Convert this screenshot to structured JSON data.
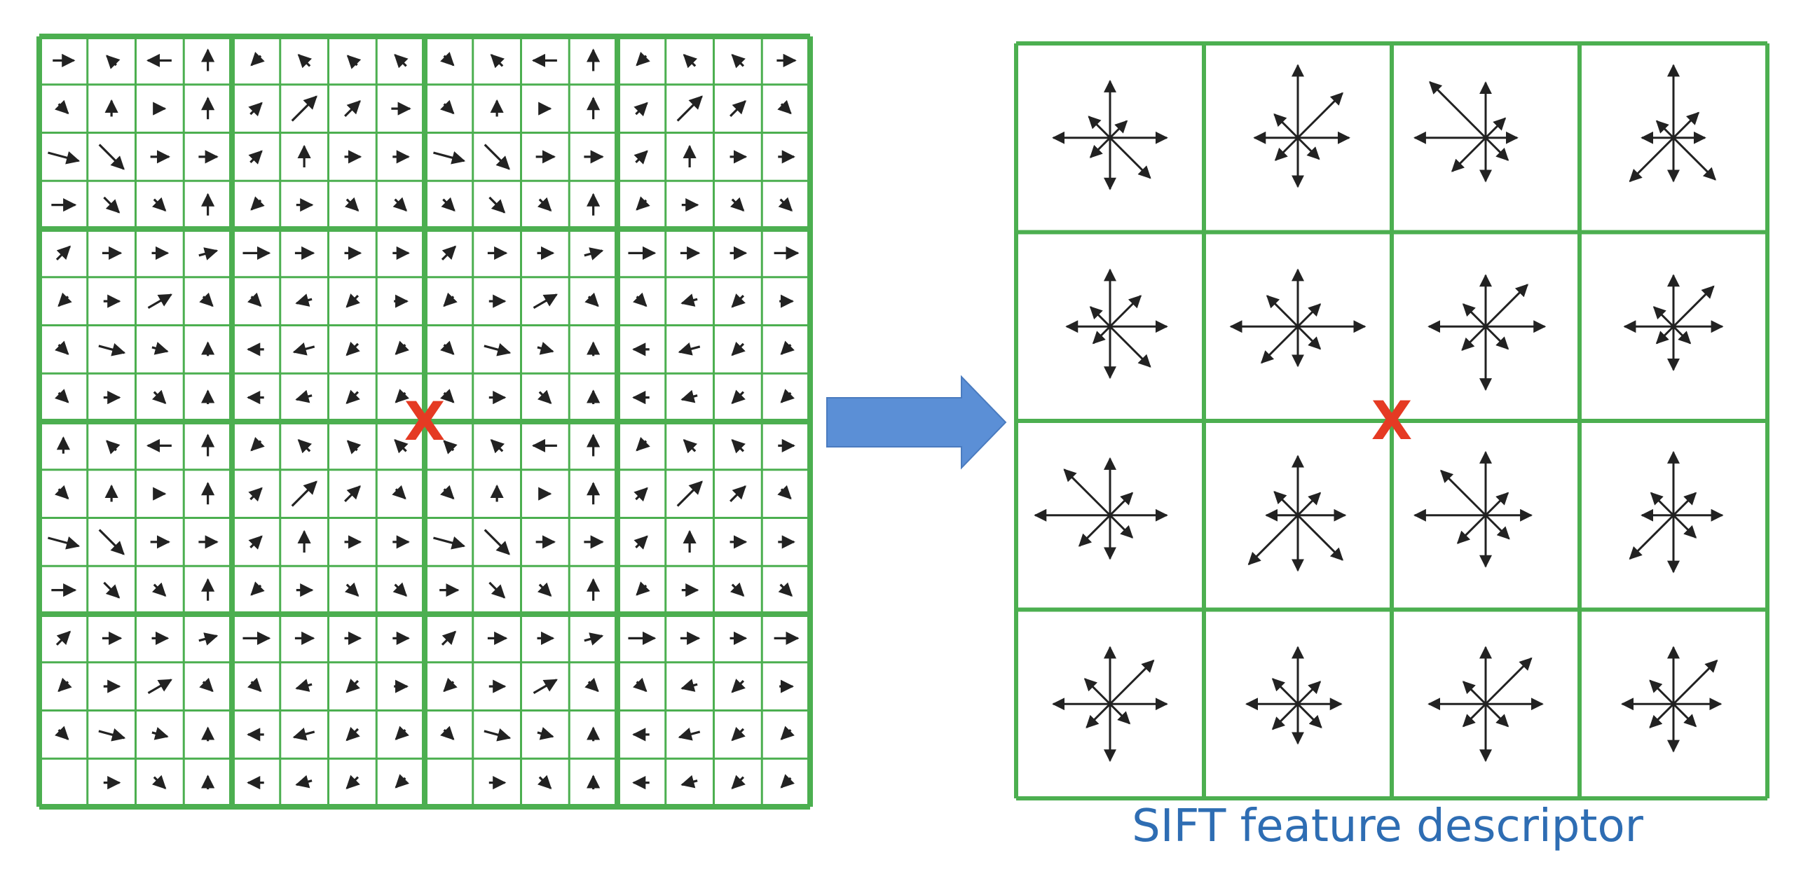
{
  "caption": "SIFT feature descriptor",
  "keypoint_mark": "X",
  "colors": {
    "grid": "#4caf50",
    "arrow": "#222222",
    "transition_arrow": "#5b8fd6",
    "transition_arrow_stroke": "#4a7bbf",
    "keypoint": "#e53a23",
    "caption": "#2e6db3"
  },
  "gradient_field": {
    "rows": 16,
    "cols": 16,
    "block_size": 4,
    "arrows": [
      [
        [
          0,
          0.8
        ],
        [
          135,
          0.5
        ],
        [
          180,
          0.9
        ],
        [
          90,
          0.8
        ],
        [
          225,
          0.5
        ],
        [
          135,
          0.6
        ],
        [
          135,
          0.5
        ],
        [
          135,
          0.6
        ],
        [
          315,
          0.5
        ],
        [
          135,
          0.6
        ],
        [
          180,
          0.9
        ],
        [
          90,
          0.8
        ],
        [
          225,
          0.5
        ],
        [
          135,
          0.6
        ],
        [
          135,
          0.6
        ],
        [
          0,
          0.7
        ]
      ],
      [
        [
          315,
          0.5
        ],
        [
          90,
          0.6
        ],
        [
          0,
          0.4
        ],
        [
          90,
          0.8
        ],
        [
          45,
          0.6
        ],
        [
          45,
          1.3
        ],
        [
          45,
          0.8
        ],
        [
          0,
          0.7
        ],
        [
          315,
          0.5
        ],
        [
          90,
          0.6
        ],
        [
          0,
          0.4
        ],
        [
          90,
          0.8
        ],
        [
          45,
          0.6
        ],
        [
          45,
          1.3
        ],
        [
          45,
          0.8
        ],
        [
          315,
          0.5
        ]
      ],
      [
        [
          345,
          1.2
        ],
        [
          315,
          1.3
        ],
        [
          0,
          0.7
        ],
        [
          0,
          0.7
        ],
        [
          45,
          0.6
        ],
        [
          90,
          0.8
        ],
        [
          0,
          0.6
        ],
        [
          0,
          0.6
        ],
        [
          345,
          1.2
        ],
        [
          315,
          1.3
        ],
        [
          0,
          0.7
        ],
        [
          0,
          0.7
        ],
        [
          45,
          0.6
        ],
        [
          90,
          0.8
        ],
        [
          0,
          0.6
        ],
        [
          0,
          0.6
        ]
      ],
      [
        [
          0,
          0.9
        ],
        [
          315,
          0.8
        ],
        [
          315,
          0.6
        ],
        [
          90,
          0.8
        ],
        [
          225,
          0.5
        ],
        [
          0,
          0.6
        ],
        [
          315,
          0.6
        ],
        [
          315,
          0.6
        ],
        [
          315,
          0.6
        ],
        [
          315,
          0.8
        ],
        [
          315,
          0.6
        ],
        [
          90,
          0.8
        ],
        [
          225,
          0.5
        ],
        [
          0,
          0.6
        ],
        [
          315,
          0.6
        ],
        [
          315,
          0.6
        ]
      ],
      [
        [
          45,
          0.7
        ],
        [
          0,
          0.7
        ],
        [
          0,
          0.6
        ],
        [
          15,
          0.7
        ],
        [
          0,
          1.0
        ],
        [
          0,
          0.7
        ],
        [
          0,
          0.6
        ],
        [
          0,
          0.6
        ],
        [
          45,
          0.7
        ],
        [
          0,
          0.7
        ],
        [
          0,
          0.6
        ],
        [
          15,
          0.7
        ],
        [
          0,
          1.0
        ],
        [
          0,
          0.7
        ],
        [
          0,
          0.6
        ],
        [
          0,
          0.9
        ]
      ],
      [
        [
          225,
          0.5
        ],
        [
          0,
          0.6
        ],
        [
          30,
          1.0
        ],
        [
          315,
          0.5
        ],
        [
          315,
          0.5
        ],
        [
          195,
          0.6
        ],
        [
          225,
          0.6
        ],
        [
          0,
          0.5
        ],
        [
          225,
          0.5
        ],
        [
          0,
          0.6
        ],
        [
          30,
          1.0
        ],
        [
          315,
          0.5
        ],
        [
          315,
          0.5
        ],
        [
          195,
          0.6
        ],
        [
          225,
          0.6
        ],
        [
          0,
          0.5
        ]
      ],
      [
        [
          315,
          0.5
        ],
        [
          345,
          1.0
        ],
        [
          345,
          0.6
        ],
        [
          90,
          0.5
        ],
        [
          180,
          0.6
        ],
        [
          195,
          0.8
        ],
        [
          225,
          0.6
        ],
        [
          225,
          0.5
        ],
        [
          315,
          0.5
        ],
        [
          345,
          1.0
        ],
        [
          345,
          0.6
        ],
        [
          90,
          0.5
        ],
        [
          180,
          0.6
        ],
        [
          195,
          0.8
        ],
        [
          225,
          0.6
        ],
        [
          225,
          0.5
        ]
      ],
      [
        [
          315,
          0.5
        ],
        [
          0,
          0.6
        ],
        [
          315,
          0.6
        ],
        [
          90,
          0.5
        ],
        [
          180,
          0.6
        ],
        [
          195,
          0.6
        ],
        [
          225,
          0.6
        ],
        [
          225,
          0.5
        ],
        [
          315,
          0.5
        ],
        [
          0,
          0.6
        ],
        [
          315,
          0.6
        ],
        [
          90,
          0.5
        ],
        [
          180,
          0.6
        ],
        [
          195,
          0.6
        ],
        [
          225,
          0.6
        ],
        [
          225,
          0.5
        ]
      ],
      [
        [
          90,
          0.6
        ],
        [
          135,
          0.5
        ],
        [
          180,
          0.9
        ],
        [
          90,
          0.8
        ],
        [
          225,
          0.5
        ],
        [
          135,
          0.6
        ],
        [
          135,
          0.5
        ],
        [
          135,
          0.6
        ],
        [
          135,
          0.5
        ],
        [
          135,
          0.6
        ],
        [
          180,
          0.9
        ],
        [
          90,
          0.8
        ],
        [
          225,
          0.5
        ],
        [
          135,
          0.6
        ],
        [
          135,
          0.6
        ],
        [
          0,
          0.6
        ]
      ],
      [
        [
          315,
          0.5
        ],
        [
          90,
          0.6
        ],
        [
          0,
          0.4
        ],
        [
          90,
          0.8
        ],
        [
          45,
          0.6
        ],
        [
          45,
          1.3
        ],
        [
          45,
          0.8
        ],
        [
          315,
          0.5
        ],
        [
          315,
          0.5
        ],
        [
          90,
          0.6
        ],
        [
          0,
          0.4
        ],
        [
          90,
          0.8
        ],
        [
          45,
          0.6
        ],
        [
          45,
          1.3
        ],
        [
          45,
          0.8
        ],
        [
          315,
          0.5
        ]
      ],
      [
        [
          345,
          1.2
        ],
        [
          315,
          1.3
        ],
        [
          0,
          0.7
        ],
        [
          0,
          0.7
        ],
        [
          45,
          0.6
        ],
        [
          90,
          0.8
        ],
        [
          0,
          0.6
        ],
        [
          0,
          0.6
        ],
        [
          345,
          1.2
        ],
        [
          315,
          1.3
        ],
        [
          0,
          0.7
        ],
        [
          0,
          0.7
        ],
        [
          45,
          0.6
        ],
        [
          90,
          0.8
        ],
        [
          0,
          0.6
        ],
        [
          0,
          0.6
        ]
      ],
      [
        [
          0,
          0.9
        ],
        [
          315,
          0.8
        ],
        [
          315,
          0.6
        ],
        [
          90,
          0.8
        ],
        [
          225,
          0.5
        ],
        [
          0,
          0.6
        ],
        [
          315,
          0.6
        ],
        [
          315,
          0.6
        ],
        [
          0,
          0.7
        ],
        [
          315,
          0.8
        ],
        [
          315,
          0.6
        ],
        [
          90,
          0.8
        ],
        [
          225,
          0.5
        ],
        [
          0,
          0.6
        ],
        [
          315,
          0.6
        ],
        [
          315,
          0.6
        ]
      ],
      [
        [
          45,
          0.7
        ],
        [
          0,
          0.7
        ],
        [
          0,
          0.6
        ],
        [
          15,
          0.7
        ],
        [
          0,
          1.0
        ],
        [
          0,
          0.7
        ],
        [
          0,
          0.6
        ],
        [
          0,
          0.6
        ],
        [
          45,
          0.7
        ],
        [
          0,
          0.7
        ],
        [
          0,
          0.6
        ],
        [
          15,
          0.7
        ],
        [
          0,
          1.0
        ],
        [
          0,
          0.7
        ],
        [
          0,
          0.6
        ],
        [
          0,
          0.9
        ]
      ],
      [
        [
          225,
          0.5
        ],
        [
          0,
          0.6
        ],
        [
          30,
          1.0
        ],
        [
          315,
          0.5
        ],
        [
          315,
          0.5
        ],
        [
          195,
          0.6
        ],
        [
          225,
          0.6
        ],
        [
          0,
          0.5
        ],
        [
          225,
          0.5
        ],
        [
          0,
          0.6
        ],
        [
          30,
          1.0
        ],
        [
          315,
          0.5
        ],
        [
          315,
          0.5
        ],
        [
          195,
          0.6
        ],
        [
          225,
          0.6
        ],
        [
          0,
          0.5
        ]
      ],
      [
        [
          315,
          0.5
        ],
        [
          345,
          1.0
        ],
        [
          345,
          0.6
        ],
        [
          90,
          0.5
        ],
        [
          180,
          0.6
        ],
        [
          195,
          0.8
        ],
        [
          225,
          0.6
        ],
        [
          225,
          0.5
        ],
        [
          315,
          0.5
        ],
        [
          345,
          1.0
        ],
        [
          345,
          0.6
        ],
        [
          90,
          0.5
        ],
        [
          180,
          0.6
        ],
        [
          195,
          0.8
        ],
        [
          225,
          0.6
        ],
        [
          225,
          0.5
        ]
      ],
      [
        [
          0,
          0.0
        ],
        [
          0,
          0.6
        ],
        [
          315,
          0.6
        ],
        [
          90,
          0.5
        ],
        [
          180,
          0.6
        ],
        [
          195,
          0.6
        ],
        [
          225,
          0.6
        ],
        [
          225,
          0.5
        ],
        [
          0,
          0.0
        ],
        [
          0,
          0.6
        ],
        [
          315,
          0.6
        ],
        [
          90,
          0.5
        ],
        [
          180,
          0.6
        ],
        [
          195,
          0.6
        ],
        [
          225,
          0.6
        ],
        [
          225,
          0.5
        ]
      ]
    ]
  },
  "descriptor": {
    "rows": 4,
    "cols": 4,
    "direction_angles_deg": [
      0,
      45,
      90,
      135,
      180,
      225,
      270,
      315
    ],
    "histograms": [
      [
        [
          0.72,
          0.3,
          0.72,
          0.38,
          0.72,
          0.35,
          0.65,
          0.72
        ],
        [
          0.65,
          0.8,
          0.92,
          0.42,
          0.55,
          0.4,
          0.62,
          0.38
        ],
        [
          0.4,
          0.35,
          0.7,
          1.0,
          0.9,
          0.6,
          0.55,
          0.4
        ],
        [
          0.4,
          0.45,
          0.92,
          0.3,
          0.4,
          0.78,
          0.55,
          0.75
        ]
      ],
      [
        [
          0.72,
          0.55,
          0.72,
          0.35,
          0.55,
          0.3,
          0.65,
          0.72
        ],
        [
          0.85,
          0.4,
          0.72,
          0.55,
          0.85,
          0.65,
          0.5,
          0.4
        ],
        [
          0.75,
          0.75,
          0.65,
          0.4,
          0.72,
          0.42,
          0.8,
          0.4
        ],
        [
          0.62,
          0.72,
          0.65,
          0.35,
          0.62,
          0.3,
          0.55,
          0.3
        ]
      ],
      [
        [
          0.72,
          0.4,
          0.72,
          0.82,
          0.95,
          0.55,
          0.55,
          0.4
        ],
        [
          0.6,
          0.4,
          0.75,
          0.42,
          0.4,
          0.88,
          0.7,
          0.8
        ],
        [
          0.58,
          0.4,
          0.8,
          0.8,
          0.9,
          0.5,
          0.65,
          0.42
        ],
        [
          0.62,
          0.4,
          0.8,
          0.4,
          0.4,
          0.78,
          0.72,
          0.4
        ]
      ],
      [
        [
          0.72,
          0.78,
          0.72,
          0.45,
          0.72,
          0.42,
          0.72,
          0.35
        ],
        [
          0.55,
          0.4,
          0.72,
          0.45,
          0.65,
          0.45,
          0.5,
          0.42
        ],
        [
          0.72,
          0.82,
          0.72,
          0.4,
          0.72,
          0.4,
          0.72,
          0.4
        ],
        [
          0.6,
          0.78,
          0.72,
          0.42,
          0.65,
          0.42,
          0.6,
          0.4
        ]
      ]
    ]
  }
}
